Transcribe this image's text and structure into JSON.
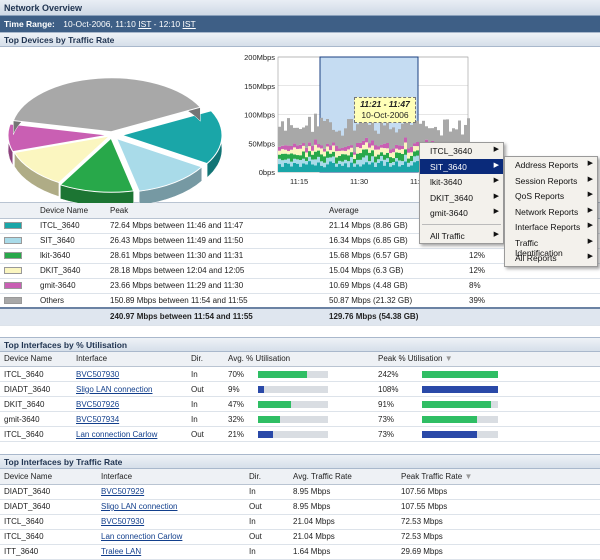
{
  "header": {
    "title": "Network Overview"
  },
  "time": {
    "label": "Time Range:",
    "start": "10-Oct-2006, 11:10",
    "tz1": "IST",
    "sep": " - ",
    "end": "12:10",
    "tz2": "IST"
  },
  "colors": {
    "ITCL": "#1aa6a8",
    "SIT": "#a9dbe9",
    "lkit": "#28a84a",
    "DKIT": "#fbf6c0",
    "gmit": "#c95fb3",
    "Others": "#a8a8a8"
  },
  "devices_section": {
    "title": "Top Devices by Traffic Rate"
  },
  "chart_data": {
    "type": "area",
    "y_ticks": [
      "200Mbps",
      "150Mbps",
      "100Mbps",
      "50Mbps",
      "0bps"
    ],
    "x_ticks": [
      "11:15",
      "11:30",
      "11:4"
    ],
    "ylim": [
      0,
      200
    ],
    "tooltip": {
      "range": "11:21 - 11:47",
      "date": "10-Oct-2006"
    },
    "pie": {
      "type": "pie",
      "values": [
        21.14,
        16.34,
        15.68,
        15.04,
        10.69,
        50.87
      ],
      "labels": [
        "ITCL_3640",
        "SIT_3640",
        "lkit-3640",
        "DKIT_3640",
        "gmit-3640",
        "Others"
      ]
    }
  },
  "device_table": {
    "headers": [
      "Device Name",
      "Peak",
      "Average"
    ],
    "rows": [
      {
        "name": "ITCL_3640",
        "peak": "72.64 Mbps between 11:46 and 11:47",
        "avg": "21.14 Mbps (8.86 GB)",
        "pct": "",
        "color": "#1aa6a8"
      },
      {
        "name": "SIT_3640",
        "peak": "26.43 Mbps between 11:49 and 11:50",
        "avg": "16.34 Mbps (6.85 GB)",
        "pct": "13%",
        "color": "#a9dbe9"
      },
      {
        "name": "lkit-3640",
        "peak": "28.61 Mbps between 11:30 and 11:31",
        "avg": "15.68 Mbps (6.57 GB)",
        "pct": "12%",
        "color": "#28a84a"
      },
      {
        "name": "DKIT_3640",
        "peak": "28.18 Mbps between 12:04 and 12:05",
        "avg": "15.04 Mbps (6.3 GB)",
        "pct": "12%",
        "color": "#fbf6c0"
      },
      {
        "name": "gmit-3640",
        "peak": "23.66 Mbps between 11:29 and 11:30",
        "avg": "10.69 Mbps (4.48 GB)",
        "pct": "8%",
        "color": "#c95fb3"
      },
      {
        "name": "Others",
        "peak": "150.89 Mbps between 11:54 and 11:55",
        "avg": "50.87 Mbps (21.32 GB)",
        "pct": "39%",
        "color": "#a8a8a8"
      }
    ],
    "total": {
      "peak": "240.97 Mbps between 11:54 and 11:55",
      "avg": "129.76 Mbps (54.38 GB)"
    }
  },
  "util_section": {
    "title": "Top Interfaces by % Utilisation"
  },
  "util_table": {
    "headers": [
      "Device Name",
      "Interface",
      "Dir.",
      "Avg. % Utilisation",
      "Peak % Utilisation"
    ],
    "rows": [
      {
        "dev": "ITCL_3640",
        "iface": "BVC507930",
        "dir": "In",
        "avg": "70%",
        "avg_v": 0.7,
        "avg_c": "#2fbe64",
        "peak": "242%",
        "peak_v": 1.0,
        "peak_c": "#2fbe64"
      },
      {
        "dev": "DIADT_3640",
        "iface": "Sligo LAN connection",
        "dir": "Out",
        "avg": "9%",
        "avg_v": 0.09,
        "avg_c": "#2a49a8",
        "peak": "108%",
        "peak_v": 1.0,
        "peak_c": "#2a49a8"
      },
      {
        "dev": "DKIT_3640",
        "iface": "BVC507926",
        "dir": "In",
        "avg": "47%",
        "avg_v": 0.47,
        "avg_c": "#2fbe64",
        "peak": "91%",
        "peak_v": 0.91,
        "peak_c": "#2fbe64"
      },
      {
        "dev": "gmit-3640",
        "iface": "BVC507934",
        "dir": "In",
        "avg": "32%",
        "avg_v": 0.32,
        "avg_c": "#2fbe64",
        "peak": "73%",
        "peak_v": 0.73,
        "peak_c": "#2fbe64"
      },
      {
        "dev": "ITCL_3640",
        "iface": "Lan connection Carlow",
        "dir": "Out",
        "avg": "21%",
        "avg_v": 0.21,
        "avg_c": "#2a49a8",
        "peak": "73%",
        "peak_v": 0.73,
        "peak_c": "#2a49a8"
      }
    ]
  },
  "rate_section": {
    "title": "Top Interfaces by Traffic Rate"
  },
  "rate_table": {
    "headers": [
      "Device Name",
      "Interface",
      "Dir.",
      "Avg. Traffic Rate",
      "Peak Traffic Rate"
    ],
    "rows": [
      {
        "dev": "DIADT_3640",
        "iface": "BVC507929",
        "dir": "In",
        "avg": "8.95 Mbps",
        "peak": "107.56 Mbps"
      },
      {
        "dev": "DIADT_3640",
        "iface": "Sligo LAN connection",
        "dir": "Out",
        "avg": "8.95 Mbps",
        "peak": "107.55 Mbps"
      },
      {
        "dev": "ITCL_3640",
        "iface": "BVC507930",
        "dir": "In",
        "avg": "21.04 Mbps",
        "peak": "72.53 Mbps"
      },
      {
        "dev": "ITCL_3640",
        "iface": "Lan connection Carlow",
        "dir": "Out",
        "avg": "21.04 Mbps",
        "peak": "72.53 Mbps"
      },
      {
        "dev": "ITT_3640",
        "iface": "Tralee LAN",
        "dir": "In",
        "avg": "1.64 Mbps",
        "peak": "29.69 Mbps"
      }
    ]
  },
  "menu1": {
    "items": [
      "ITCL_3640",
      "SIT_3640",
      "lkit-3640",
      "DKIT_3640",
      "gmit-3640"
    ],
    "all": "All Traffic"
  },
  "menu2": {
    "items": [
      "Address Reports",
      "Session Reports",
      "QoS Reports",
      "Network Reports",
      "Interface Reports",
      "Traffic Identification",
      "All Reports"
    ]
  }
}
